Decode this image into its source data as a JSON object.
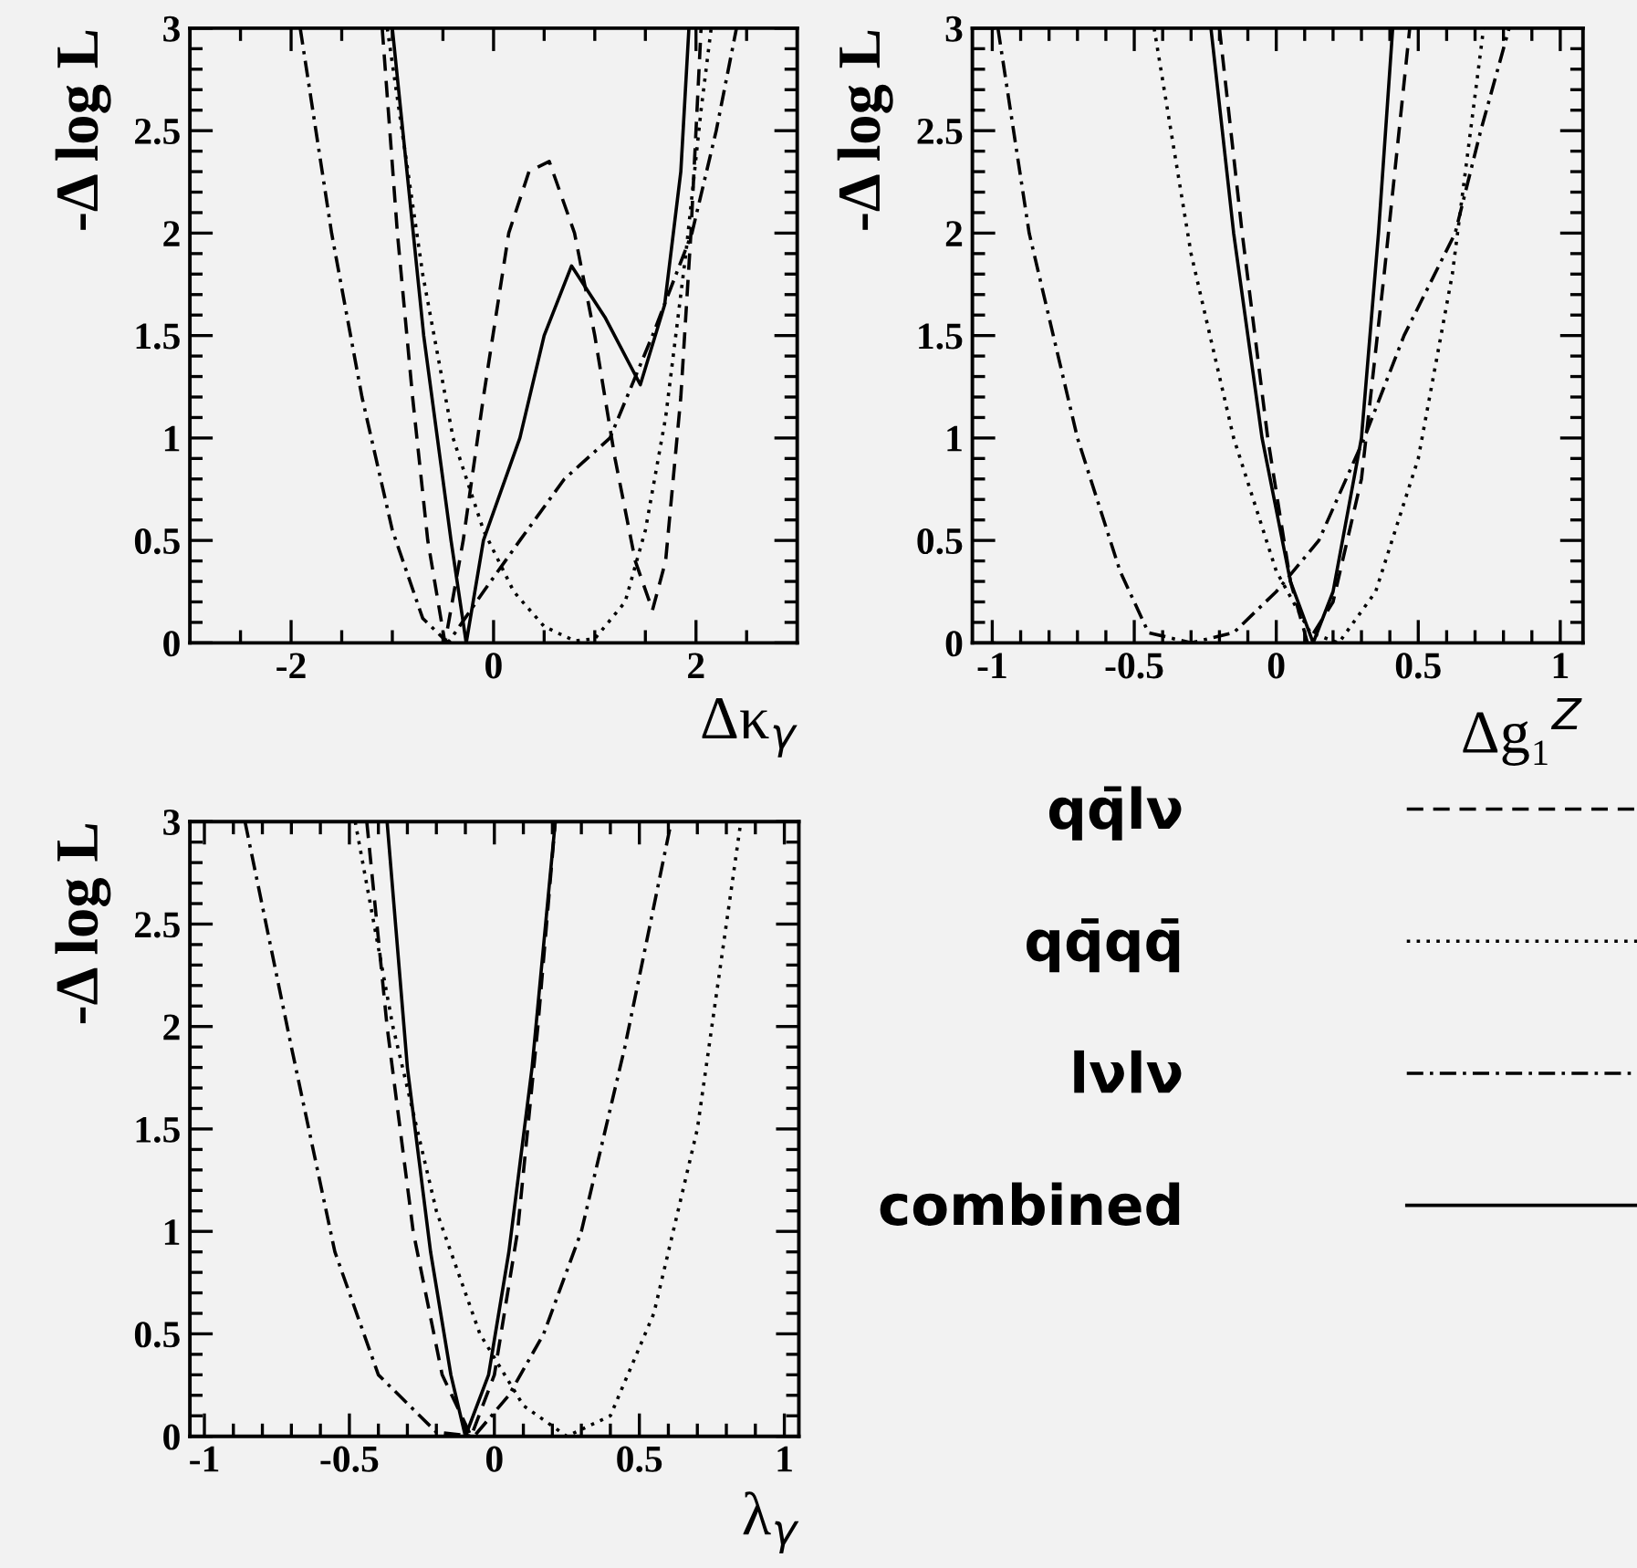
{
  "chart_data": [
    {
      "type": "line",
      "xlabel": "Δκ$_{γ}$",
      "ylabel": "-Δ log L",
      "xlim": [
        -3,
        3
      ],
      "ylim": [
        0,
        3
      ],
      "xticks": [
        -2,
        0,
        2,
        {
          "value": -2.5,
          "label": null
        },
        {
          "value": -1.5,
          "label": null
        },
        {
          "value": -1,
          "label": null
        },
        {
          "value": -0.5,
          "label": null
        },
        {
          "value": 0.5,
          "label": null
        },
        {
          "value": 1,
          "label": null
        },
        {
          "value": 1.5,
          "label": null
        },
        {
          "value": 2.5,
          "label": null
        }
      ],
      "yticks": [
        0,
        0.5,
        1,
        1.5,
        2,
        2.5,
        3,
        {
          "value": 0.1,
          "label": null
        },
        {
          "value": 0.2,
          "label": null
        },
        {
          "value": 0.3,
          "label": null
        },
        {
          "value": 0.4,
          "label": null
        },
        {
          "value": 0.6,
          "label": null
        },
        {
          "value": 0.7,
          "label": null
        },
        {
          "value": 0.8,
          "label": null
        },
        {
          "value": 0.9,
          "label": null
        },
        {
          "value": 1.1,
          "label": null
        },
        {
          "value": 1.2,
          "label": null
        },
        {
          "value": 1.3,
          "label": null
        },
        {
          "value": 1.4,
          "label": null
        },
        {
          "value": 1.6,
          "label": null
        },
        {
          "value": 1.7,
          "label": null
        },
        {
          "value": 1.8,
          "label": null
        },
        {
          "value": 1.9,
          "label": null
        },
        {
          "value": 2.1,
          "label": null
        },
        {
          "value": 2.2,
          "label": null
        },
        {
          "value": 2.3,
          "label": null
        },
        {
          "value": 2.4,
          "label": null
        },
        {
          "value": 2.6,
          "label": null
        },
        {
          "value": 2.7,
          "label": null
        },
        {
          "value": 2.8,
          "label": null
        },
        {
          "value": 2.9,
          "label": null
        }
      ],
      "series": [
        {
          "color": "#000000",
          "line_style": "dashed",
          "x": [
            -1.1,
            -0.95,
            -0.8,
            -0.65,
            -0.48,
            -0.3,
            -0.1,
            0.15,
            0.35,
            0.55,
            0.8,
            1.0,
            1.2,
            1.4,
            1.57,
            1.7,
            1.85,
            1.95,
            2.05
          ],
          "values": [
            3,
            2,
            1.2,
            0.5,
            0,
            0.5,
            1.2,
            2.0,
            2.3,
            2.35,
            2.0,
            1.5,
            0.9,
            0.4,
            0.16,
            0.4,
            1.2,
            2.0,
            3
          ]
        },
        {
          "color": "#000000",
          "line_style": "dotted",
          "x": [
            -1.05,
            -0.7,
            -0.4,
            -0.1,
            0.2,
            0.5,
            0.8,
            1.0,
            1.3,
            1.5,
            1.7,
            1.9,
            2.05,
            2.15
          ],
          "values": [
            3,
            1.8,
            1.0,
            0.55,
            0.25,
            0.08,
            0.01,
            0.02,
            0.2,
            0.55,
            1.1,
            1.9,
            2.6,
            3
          ]
        },
        {
          "color": "#000000",
          "line_style": "dashdot",
          "x": [
            -1.91,
            -1.6,
            -1.3,
            -1.0,
            -0.7,
            -0.45,
            -0.1,
            0.26,
            0.7,
            1.15,
            1.57,
            1.96,
            2.2,
            2.4
          ],
          "values": [
            3,
            2.0,
            1.2,
            0.55,
            0.12,
            0,
            0.25,
            0.5,
            0.8,
            1.0,
            1.5,
            2.0,
            2.5,
            3
          ]
        },
        {
          "color": "#000000",
          "line_style": "solid",
          "x": [
            -1.0,
            -0.69,
            -0.42,
            -0.27,
            -0.1,
            0.26,
            0.5,
            0.77,
            1.1,
            1.45,
            1.69,
            1.85,
            1.93
          ],
          "values": [
            3,
            1.5,
            0.5,
            0,
            0.5,
            1.0,
            1.5,
            1.84,
            1.59,
            1.26,
            1.65,
            2.3,
            3
          ]
        }
      ]
    },
    {
      "type": "line",
      "xlabel": "Δg₁$^{Z}$",
      "ylabel": "-Δ log L",
      "xlim": [
        -1.07,
        1.08
      ],
      "ylim": [
        0,
        3
      ],
      "xticks": [
        -1,
        -0.5,
        0,
        0.5,
        1,
        {
          "value": -0.9,
          "label": null
        },
        {
          "value": -0.8,
          "label": null
        },
        {
          "value": -0.7,
          "label": null
        },
        {
          "value": -0.6,
          "label": null
        },
        {
          "value": -0.4,
          "label": null
        },
        {
          "value": -0.3,
          "label": null
        },
        {
          "value": -0.2,
          "label": null
        },
        {
          "value": -0.1,
          "label": null
        },
        {
          "value": 0.1,
          "label": null
        },
        {
          "value": 0.2,
          "label": null
        },
        {
          "value": 0.3,
          "label": null
        },
        {
          "value": 0.4,
          "label": null
        },
        {
          "value": 0.6,
          "label": null
        },
        {
          "value": 0.7,
          "label": null
        },
        {
          "value": 0.8,
          "label": null
        },
        {
          "value": 0.9,
          "label": null
        }
      ],
      "yticks": [
        0,
        0.5,
        1,
        1.5,
        2,
        2.5,
        3,
        {
          "value": 0.1,
          "label": null
        },
        {
          "value": 0.2,
          "label": null
        },
        {
          "value": 0.3,
          "label": null
        },
        {
          "value": 0.4,
          "label": null
        },
        {
          "value": 0.6,
          "label": null
        },
        {
          "value": 0.7,
          "label": null
        },
        {
          "value": 0.8,
          "label": null
        },
        {
          "value": 0.9,
          "label": null
        },
        {
          "value": 1.1,
          "label": null
        },
        {
          "value": 1.2,
          "label": null
        },
        {
          "value": 1.3,
          "label": null
        },
        {
          "value": 1.4,
          "label": null
        },
        {
          "value": 1.6,
          "label": null
        },
        {
          "value": 1.7,
          "label": null
        },
        {
          "value": 1.8,
          "label": null
        },
        {
          "value": 1.9,
          "label": null
        },
        {
          "value": 2.1,
          "label": null
        },
        {
          "value": 2.2,
          "label": null
        },
        {
          "value": 2.3,
          "label": null
        },
        {
          "value": 2.4,
          "label": null
        },
        {
          "value": 2.6,
          "label": null
        },
        {
          "value": 2.7,
          "label": null
        },
        {
          "value": 2.8,
          "label": null
        },
        {
          "value": 2.9,
          "label": null
        }
      ],
      "series": [
        {
          "color": "#000000",
          "line_style": "dashed",
          "x": [
            -0.2,
            -0.12,
            -0.03,
            0.05,
            0.11,
            0.2,
            0.3,
            0.38,
            0.47
          ],
          "values": [
            3,
            2,
            1,
            0.3,
            0,
            0.2,
            0.8,
            1.8,
            3
          ]
        },
        {
          "color": "#000000",
          "line_style": "dotted",
          "x": [
            -0.43,
            -0.3,
            -0.15,
            0.0,
            0.12,
            0.22,
            0.35,
            0.5,
            0.62,
            0.73
          ],
          "values": [
            3,
            1.9,
            1.0,
            0.35,
            0.05,
            0,
            0.25,
            0.9,
            1.8,
            3
          ]
        },
        {
          "color": "#000000",
          "line_style": "dashdot",
          "x": [
            -0.98,
            -0.87,
            -0.7,
            -0.55,
            -0.45,
            -0.3,
            -0.15,
            0.0,
            0.15,
            0.31,
            0.45,
            0.63,
            0.72,
            0.82
          ],
          "values": [
            3,
            2,
            1,
            0.35,
            0.05,
            0,
            0.05,
            0.25,
            0.5,
            1.0,
            1.5,
            2.0,
            2.5,
            3
          ]
        },
        {
          "color": "#000000",
          "line_style": "solid",
          "x": [
            -0.23,
            -0.15,
            -0.05,
            0.05,
            0.13,
            0.2,
            0.3,
            0.36,
            0.41
          ],
          "values": [
            3,
            2,
            1.0,
            0.3,
            0,
            0.25,
            1.0,
            2,
            3
          ]
        }
      ]
    },
    {
      "type": "line",
      "xlabel": "λ$_{γ}$",
      "ylabel": "-Δ log L",
      "xlim": [
        -1.05,
        1.05
      ],
      "ylim": [
        0,
        3
      ],
      "legend": "right",
      "xticks": [
        -1,
        -0.5,
        0,
        0.5,
        1,
        {
          "value": -0.9,
          "label": null
        },
        {
          "value": -0.8,
          "label": null
        },
        {
          "value": -0.7,
          "label": null
        },
        {
          "value": -0.6,
          "label": null
        },
        {
          "value": -0.4,
          "label": null
        },
        {
          "value": -0.3,
          "label": null
        },
        {
          "value": -0.2,
          "label": null
        },
        {
          "value": -0.1,
          "label": null
        },
        {
          "value": 0.1,
          "label": null
        },
        {
          "value": 0.2,
          "label": null
        },
        {
          "value": 0.3,
          "label": null
        },
        {
          "value": 0.4,
          "label": null
        },
        {
          "value": 0.6,
          "label": null
        },
        {
          "value": 0.7,
          "label": null
        },
        {
          "value": 0.8,
          "label": null
        },
        {
          "value": 0.9,
          "label": null
        }
      ],
      "yticks": [
        0,
        0.5,
        1,
        1.5,
        2,
        2.5,
        3,
        {
          "value": 0.1,
          "label": null
        },
        {
          "value": 0.2,
          "label": null
        },
        {
          "value": 0.3,
          "label": null
        },
        {
          "value": 0.4,
          "label": null
        },
        {
          "value": 0.6,
          "label": null
        },
        {
          "value": 0.7,
          "label": null
        },
        {
          "value": 0.8,
          "label": null
        },
        {
          "value": 0.9,
          "label": null
        },
        {
          "value": 1.1,
          "label": null
        },
        {
          "value": 1.2,
          "label": null
        },
        {
          "value": 1.3,
          "label": null
        },
        {
          "value": 1.4,
          "label": null
        },
        {
          "value": 1.6,
          "label": null
        },
        {
          "value": 1.7,
          "label": null
        },
        {
          "value": 1.8,
          "label": null
        },
        {
          "value": 1.9,
          "label": null
        },
        {
          "value": 2.1,
          "label": null
        },
        {
          "value": 2.2,
          "label": null
        },
        {
          "value": 2.3,
          "label": null
        },
        {
          "value": 2.4,
          "label": null
        },
        {
          "value": 2.6,
          "label": null
        },
        {
          "value": 2.7,
          "label": null
        },
        {
          "value": 2.8,
          "label": null
        },
        {
          "value": 2.9,
          "label": null
        }
      ],
      "series": [
        {
          "name": "qq̄lν",
          "color": "#000000",
          "line_style": "dashed",
          "x": [
            -0.44,
            -0.37,
            -0.28,
            -0.18,
            -0.08,
            0.0,
            0.08,
            0.15,
            0.21
          ],
          "values": [
            3,
            2,
            1.0,
            0.3,
            0,
            0.3,
            1.0,
            2,
            3
          ]
        },
        {
          "name": "qq̄qq̄",
          "color": "#000000",
          "line_style": "dotted",
          "x": [
            -0.48,
            -0.35,
            -0.2,
            -0.05,
            0.1,
            0.25,
            0.4,
            0.55,
            0.7,
            0.85
          ],
          "values": [
            3,
            2,
            1.1,
            0.5,
            0.15,
            0,
            0.1,
            0.6,
            1.5,
            3
          ]
        },
        {
          "name": "lνlν",
          "color": "#000000",
          "line_style": "dashdot",
          "x": [
            -0.86,
            -0.7,
            -0.55,
            -0.4,
            -0.2,
            -0.07,
            0.05,
            0.17,
            0.3,
            0.45,
            0.61
          ],
          "values": [
            3,
            1.9,
            0.9,
            0.3,
            0.02,
            0,
            0.2,
            0.5,
            1.0,
            1.9,
            3
          ]
        },
        {
          "name": "combined",
          "color": "#000000",
          "line_style": "solid",
          "x": [
            -0.37,
            -0.3,
            -0.22,
            -0.15,
            -0.1,
            -0.02,
            0.05,
            0.13,
            0.21
          ],
          "values": [
            3,
            1.8,
            0.9,
            0.3,
            0,
            0.3,
            0.9,
            1.8,
            3
          ]
        }
      ]
    }
  ]
}
